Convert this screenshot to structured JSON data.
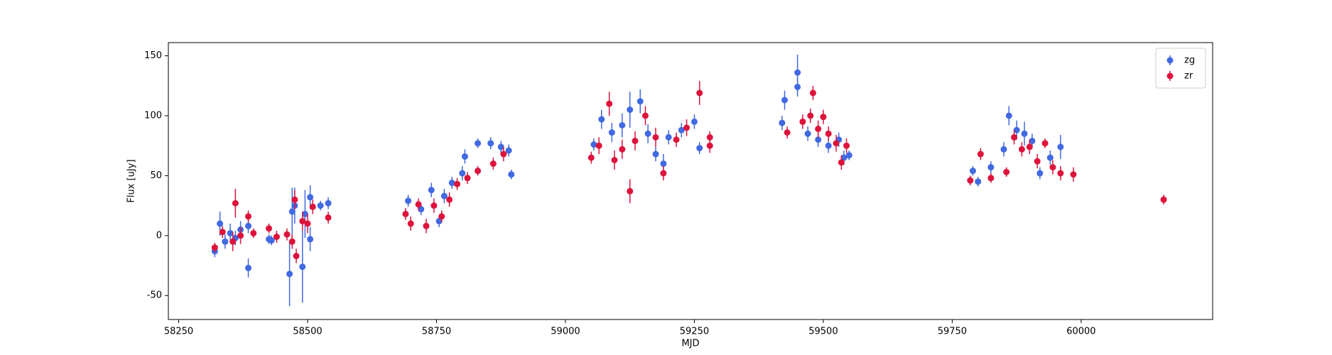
{
  "chart_data": {
    "type": "errorbar",
    "xlabel": "MJD",
    "ylabel": "Flux [uJy]",
    "xlim": [
      58230,
      60255
    ],
    "ylim": [
      -70,
      161
    ],
    "xticks": [
      58250,
      58500,
      58750,
      59000,
      59250,
      59500,
      59750,
      60000
    ],
    "yticks": [
      -50,
      0,
      50,
      100,
      150
    ],
    "legend": "upper right",
    "series": [
      {
        "name": "zg",
        "color": "#4169e1",
        "x": [
          58320,
          58330,
          58340,
          58350,
          58360,
          58370,
          58385,
          58385,
          58425,
          58430,
          58465,
          58470,
          58475,
          58490,
          58495,
          58505,
          58505,
          58525,
          58540,
          58695,
          58720,
          58740,
          58755,
          58765,
          58780,
          58800,
          58805,
          58830,
          58855,
          58875,
          58890,
          58895,
          59055,
          59070,
          59090,
          59110,
          59125,
          59145,
          59160,
          59175,
          59190,
          59200,
          59225,
          59250,
          59260,
          59420,
          59425,
          59450,
          59450,
          59470,
          59490,
          59510,
          59530,
          59540,
          59550,
          59790,
          59800,
          59825,
          59850,
          59860,
          59875,
          59890,
          59905,
          59920,
          59940,
          59960
        ],
        "values": [
          -13,
          10,
          -5,
          2,
          -2,
          5,
          -27,
          8,
          -3,
          -4,
          -32,
          20,
          25,
          -26,
          18,
          32,
          -3,
          25,
          27,
          29,
          22,
          38,
          12,
          33,
          44,
          52,
          66,
          77,
          77,
          74,
          71,
          51,
          76,
          97,
          86,
          92,
          105,
          112,
          85,
          68,
          60,
          82,
          88,
          95,
          73,
          94,
          113,
          136,
          124,
          85,
          80,
          75,
          80,
          65,
          67,
          54,
          45,
          57,
          72,
          100,
          88,
          85,
          79,
          52,
          65,
          74
        ],
        "errors": [
          5,
          10,
          6,
          8,
          6,
          7,
          8,
          6,
          4,
          4,
          27,
          20,
          15,
          30,
          20,
          10,
          10,
          4,
          5,
          5,
          5,
          6,
          5,
          6,
          5,
          6,
          6,
          4,
          5,
          5,
          5,
          4,
          5,
          8,
          8,
          10,
          15,
          10,
          8,
          6,
          8,
          6,
          6,
          6,
          5,
          6,
          8,
          15,
          8,
          6,
          6,
          6,
          6,
          6,
          4,
          4,
          4,
          5,
          6,
          8,
          8,
          10,
          6,
          5,
          6,
          10
        ]
      },
      {
        "name": "zr",
        "color": "#dc143c",
        "x": [
          58320,
          58335,
          58355,
          58360,
          58370,
          58385,
          58395,
          58425,
          58440,
          58460,
          58470,
          58475,
          58478,
          58490,
          58500,
          58510,
          58540,
          58690,
          58700,
          58715,
          58730,
          58745,
          58760,
          58775,
          58790,
          58810,
          58830,
          58860,
          58880,
          59050,
          59065,
          59085,
          59095,
          59110,
          59125,
          59135,
          59155,
          59175,
          59190,
          59215,
          59235,
          59260,
          59280,
          59280,
          59430,
          59460,
          59475,
          59480,
          59490,
          59500,
          59510,
          59525,
          59535,
          59545,
          59785,
          59805,
          59825,
          59855,
          59870,
          59885,
          59900,
          59915,
          59930,
          59945,
          59960,
          59985,
          60160
        ],
        "values": [
          -10,
          3,
          -5,
          27,
          0,
          16,
          2,
          6,
          -1,
          1,
          -5,
          30,
          -17,
          12,
          10,
          24,
          15,
          18,
          10,
          26,
          8,
          25,
          16,
          30,
          43,
          48,
          54,
          60,
          68,
          65,
          75,
          110,
          63,
          72,
          37,
          79,
          100,
          82,
          52,
          80,
          90,
          119,
          75,
          82,
          86,
          95,
          100,
          119,
          89,
          99,
          85,
          77,
          61,
          75,
          46,
          68,
          48,
          53,
          82,
          72,
          74,
          62,
          77,
          57,
          52,
          51,
          30
        ],
        "errors": [
          4,
          5,
          8,
          12,
          7,
          5,
          4,
          4,
          5,
          5,
          6,
          8,
          6,
          8,
          8,
          6,
          5,
          5,
          6,
          5,
          6,
          6,
          5,
          6,
          5,
          5,
          4,
          5,
          6,
          5,
          7,
          10,
          8,
          8,
          10,
          8,
          8,
          8,
          6,
          6,
          7,
          10,
          6,
          5,
          5,
          6,
          6,
          6,
          7,
          6,
          6,
          7,
          6,
          6,
          4,
          5,
          4,
          4,
          6,
          6,
          6,
          6,
          4,
          6,
          6,
          6,
          4
        ]
      }
    ]
  }
}
